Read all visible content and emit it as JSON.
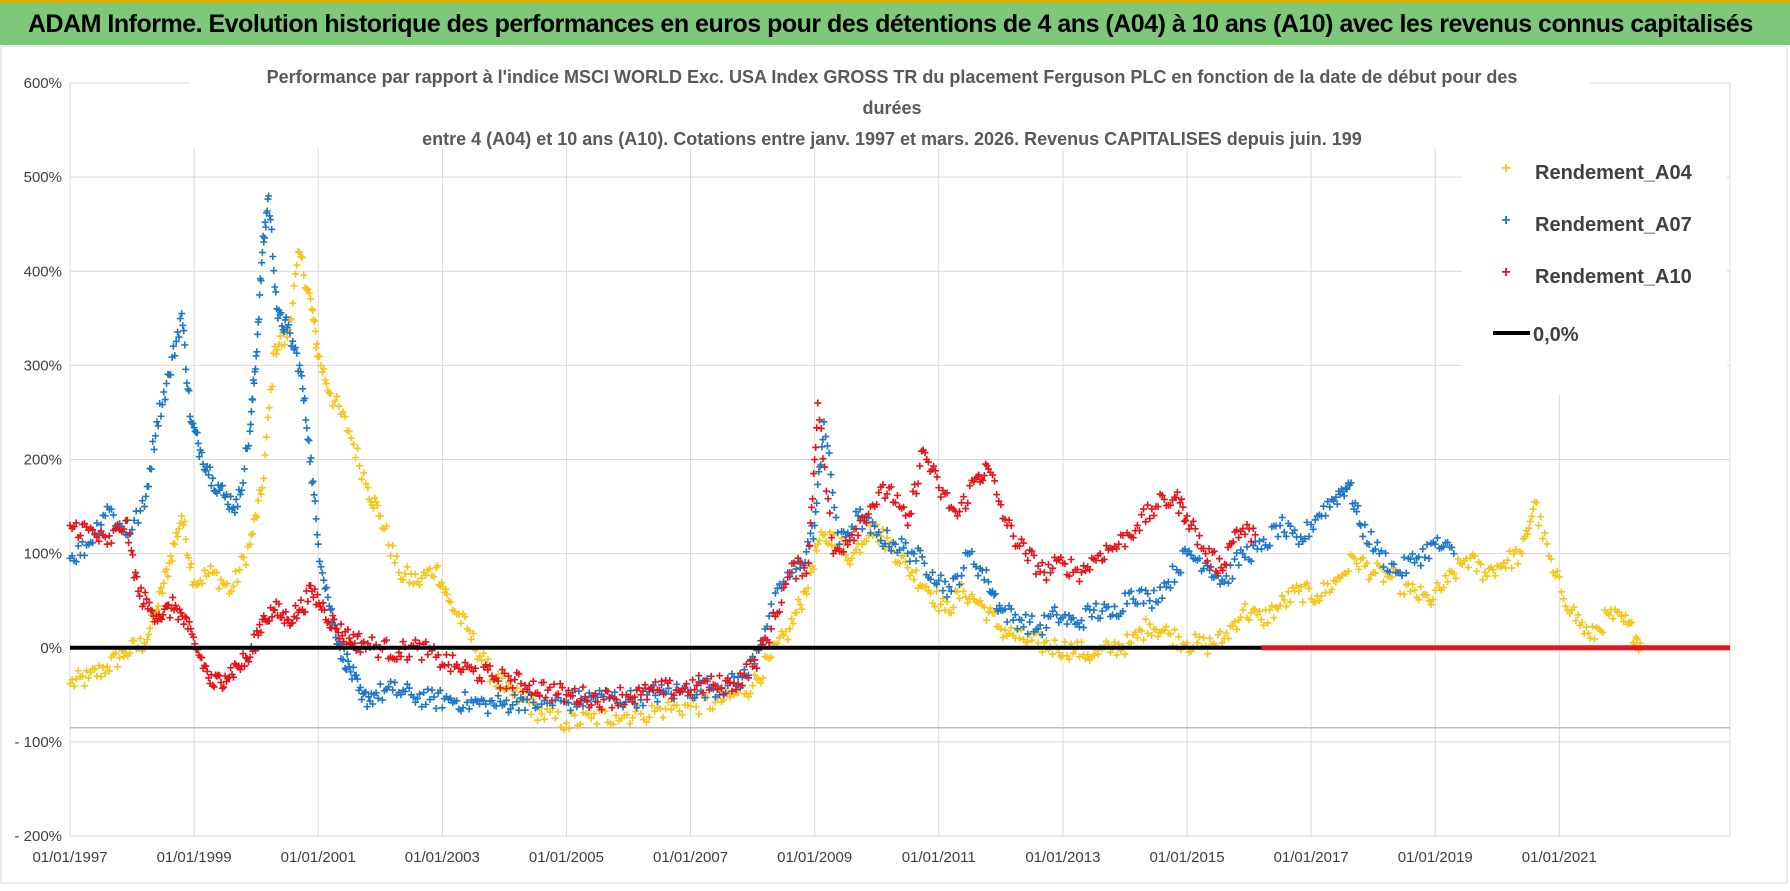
{
  "banner": {
    "title": "ADAM Informe. Evolution historique des performances en euros pour des détentions de 4 ans (A04) à 10 ans (A10) avec les revenus connus capitalisés"
  },
  "colors": {
    "banner": "#7ec87a",
    "a04": "#f5c518",
    "a07": "#1f77c8",
    "a10": "#e8141c",
    "zero": "#000000",
    "grid": "#d9d9d9"
  },
  "chart_data": {
    "type": "scatter",
    "title_lines": [
      "Performance par rapport à l'indice MSCI WORLD Exc. USA Index GROSS TR  du placement Ferguson PLC en fonction de la date de début pour des",
      "durées",
      "entre 4 (A04) et 10 ans (A10).  Cotations entre janv. 1997 et mars. 2026.  Revenus CAPITALISES depuis juin. 199"
    ],
    "xlabel": "",
    "ylabel": "",
    "x_range": [
      1997.0,
      2023.75
    ],
    "ylim": [
      -200,
      600
    ],
    "y_ticks": [
      {
        "v": 600,
        "label": "600%"
      },
      {
        "v": 500,
        "label": "500%"
      },
      {
        "v": 400,
        "label": "400%"
      },
      {
        "v": 300,
        "label": "300%"
      },
      {
        "v": 200,
        "label": "200%"
      },
      {
        "v": 100,
        "label": "100%"
      },
      {
        "v": 0,
        "label": "0%"
      },
      {
        "v": -100,
        "label": "- 100%"
      },
      {
        "v": -200,
        "label": "- 200%"
      }
    ],
    "x_ticks": [
      {
        "v": 1997,
        "label": "01/01/1997"
      },
      {
        "v": 1999,
        "label": "01/01/1999"
      },
      {
        "v": 2001,
        "label": "01/01/2001"
      },
      {
        "v": 2003,
        "label": "01/01/2003"
      },
      {
        "v": 2005,
        "label": "01/01/2005"
      },
      {
        "v": 2007,
        "label": "01/01/2007"
      },
      {
        "v": 2009,
        "label": "01/01/2009"
      },
      {
        "v": 2011,
        "label": "01/01/2011"
      },
      {
        "v": 2013,
        "label": "01/01/2013"
      },
      {
        "v": 2015,
        "label": "01/01/2015"
      },
      {
        "v": 2017,
        "label": "01/01/2017"
      },
      {
        "v": 2019,
        "label": "01/01/2019"
      },
      {
        "v": 2021,
        "label": "01/01/2021"
      }
    ],
    "legend": {
      "position": "top-right",
      "entries": [
        {
          "name": "Rendement_A04",
          "color": "#f5c518",
          "marker": "+"
        },
        {
          "name": "Rendement_A07",
          "color": "#1f77c8",
          "marker": "+"
        },
        {
          "name": "Rendement_A10",
          "color": "#e8141c",
          "marker": "+"
        },
        {
          "name": "0,0%",
          "color": "#000000",
          "marker": "line"
        }
      ]
    },
    "series": [
      {
        "name": "Rendement_A04",
        "color": "#f5c518",
        "x": [
          1997.0,
          1997.3,
          1997.6,
          1997.9,
          1998.2,
          1998.4,
          1998.6,
          1998.8,
          1999.0,
          1999.3,
          1999.6,
          1999.9,
          2000.1,
          2000.3,
          2000.5,
          2000.7,
          2000.9,
          2001.0,
          2001.2,
          2001.5,
          2001.8,
          2002.0,
          2002.3,
          2002.6,
          2002.9,
          2003.1,
          2003.4,
          2003.7,
          2004.0,
          2004.3,
          2004.6,
          2005.0,
          2005.4,
          2005.8,
          2006.2,
          2006.6,
          2007.0,
          2007.4,
          2007.7,
          2008.0,
          2008.3,
          2008.6,
          2008.85,
          2009.05,
          2009.3,
          2009.6,
          2009.9,
          2010.2,
          2010.5,
          2010.8,
          2011.1,
          2011.4,
          2011.7,
          2012.0,
          2012.3,
          2012.6,
          2012.9,
          2013.2,
          2013.5,
          2013.8,
          2014.1,
          2014.4,
          2014.7,
          2015.0,
          2015.3,
          2015.6,
          2015.9,
          2016.2,
          2016.5,
          2016.8,
          2017.1,
          2017.4,
          2017.7,
          2018.0,
          2018.3,
          2018.6,
          2018.9,
          2019.2,
          2019.5,
          2019.8,
          2020.1,
          2020.4,
          2020.6,
          2020.9,
          2021.2,
          2021.5,
          2021.8,
          2022.1,
          2022.3
        ],
        "values": [
          -38,
          -32,
          -20,
          -5,
          5,
          40,
          90,
          140,
          70,
          80,
          60,
          110,
          170,
          320,
          330,
          420,
          360,
          310,
          270,
          230,
          170,
          140,
          80,
          70,
          85,
          50,
          20,
          -20,
          -45,
          -55,
          -70,
          -80,
          -75,
          -72,
          -70,
          -65,
          -62,
          -58,
          -50,
          -40,
          -10,
          20,
          60,
          110,
          120,
          95,
          130,
          110,
          85,
          65,
          40,
          60,
          45,
          20,
          10,
          5,
          0,
          -2,
          -8,
          0,
          5,
          25,
          15,
          5,
          2,
          10,
          40,
          30,
          45,
          60,
          55,
          70,
          95,
          80,
          75,
          60,
          50,
          70,
          95,
          80,
          90,
          100,
          155,
          80,
          40,
          10,
          35,
          25,
          5
        ]
      },
      {
        "name": "Rendement_A07",
        "color": "#1f77c8",
        "x": [
          1997.0,
          1997.3,
          1997.6,
          1997.9,
          1998.2,
          1998.4,
          1998.6,
          1998.8,
          1998.95,
          1999.1,
          1999.3,
          1999.5,
          1999.7,
          1999.9,
          2000.0,
          2000.1,
          2000.2,
          2000.35,
          2000.5,
          2000.7,
          2000.85,
          2001.0,
          2001.2,
          2001.35,
          2001.5,
          2001.7,
          2001.9,
          2002.2,
          2002.5,
          2002.8,
          2003.1,
          2003.4,
          2003.7,
          2004.0,
          2004.3,
          2004.6,
          2005.0,
          2005.3,
          2005.6,
          2006.0,
          2006.3,
          2006.6,
          2007.0,
          2007.3,
          2007.6,
          2007.9,
          2008.2,
          2008.5,
          2008.8,
          2009.0,
          2009.15,
          2009.4,
          2009.7,
          2010.0,
          2010.3,
          2010.6,
          2010.9,
          2011.2,
          2011.5,
          2011.8,
          2012.0,
          2012.3,
          2012.6,
          2012.9,
          2013.2,
          2013.5,
          2013.8,
          2014.1,
          2014.4,
          2014.7,
          2015.0,
          2015.3,
          2015.6,
          2015.9,
          2016.2,
          2016.5,
          2016.8,
          2017.1,
          2017.4,
          2017.6,
          2017.8,
          2018.1,
          2018.4,
          2018.7,
          2019.0,
          2019.3
        ],
        "values": [
          95,
          110,
          150,
          120,
          150,
          240,
          290,
          355,
          240,
          210,
          180,
          160,
          150,
          230,
          310,
          420,
          480,
          350,
          340,
          300,
          220,
          110,
          40,
          0,
          -20,
          -55,
          -50,
          -45,
          -50,
          -55,
          -55,
          -58,
          -60,
          -60,
          -55,
          -60,
          -58,
          -55,
          -52,
          -55,
          -50,
          -48,
          -45,
          -42,
          -40,
          -30,
          20,
          70,
          90,
          130,
          240,
          110,
          140,
          120,
          110,
          100,
          80,
          60,
          100,
          70,
          40,
          30,
          20,
          35,
          25,
          40,
          35,
          60,
          50,
          70,
          100,
          90,
          70,
          100,
          105,
          130,
          110,
          140,
          160,
          175,
          130,
          100,
          80,
          95,
          110,
          100
        ]
      },
      {
        "name": "Rendement_A10",
        "color": "#e8141c",
        "x": [
          1997.0,
          1997.3,
          1997.6,
          1997.9,
          1998.1,
          1998.3,
          1998.5,
          1998.7,
          1998.9,
          1999.1,
          1999.3,
          1999.5,
          1999.7,
          1999.9,
          2000.1,
          2000.3,
          2000.5,
          2000.7,
          2000.9,
          2001.1,
          2001.3,
          2001.5,
          2001.7,
          2002.0,
          2002.3,
          2002.6,
          2002.9,
          2003.2,
          2003.5,
          2003.8,
          2004.1,
          2004.4,
          2004.7,
          2005.0,
          2005.3,
          2005.6,
          2005.9,
          2006.2,
          2006.5,
          2006.8,
          2007.1,
          2007.4,
          2007.7,
          2008.0,
          2008.3,
          2008.6,
          2008.9,
          2009.05,
          2009.3,
          2009.6,
          2009.9,
          2010.2,
          2010.5,
          2010.75,
          2011.0,
          2011.3,
          2011.6,
          2011.8,
          2012.1,
          2012.4,
          2012.7,
          2013.0,
          2013.3,
          2013.6,
          2013.9,
          2014.2,
          2014.5,
          2014.8,
          2015.0,
          2015.3,
          2015.55,
          2015.8,
          2016.1
        ],
        "values": [
          130,
          125,
          110,
          135,
          60,
          40,
          35,
          45,
          20,
          -10,
          -40,
          -30,
          -20,
          -10,
          30,
          40,
          30,
          40,
          60,
          40,
          20,
          10,
          5,
          0,
          -5,
          0,
          -10,
          -20,
          -25,
          -30,
          -35,
          -40,
          -45,
          -50,
          -52,
          -55,
          -50,
          -50,
          -45,
          -45,
          -40,
          -40,
          -38,
          -20,
          20,
          80,
          90,
          260,
          100,
          120,
          150,
          170,
          130,
          210,
          170,
          140,
          180,
          190,
          130,
          100,
          80,
          90,
          80,
          100,
          110,
          130,
          150,
          160,
          140,
          100,
          85,
          125,
          120
        ]
      },
      {
        "name": "0,0%",
        "color": "#000000",
        "x": [
          1997.0,
          2023.75
        ],
        "values": [
          0,
          0
        ]
      },
      {
        "name": "Rendement_A10 (tail)",
        "color": "#e8141c",
        "x": [
          2016.2,
          2023.75
        ],
        "values": [
          0,
          0
        ]
      }
    ]
  }
}
